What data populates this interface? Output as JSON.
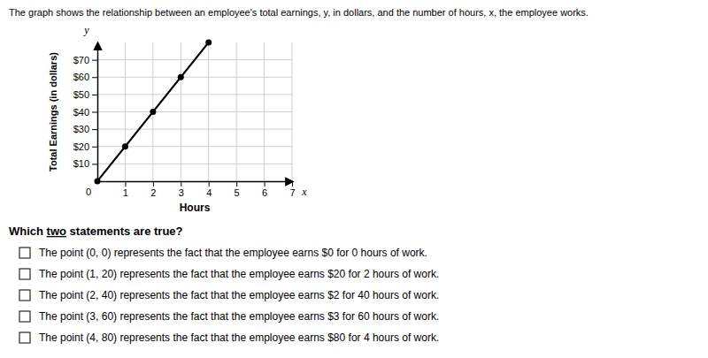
{
  "chart_data": {
    "type": "line",
    "title": "The graph shows the relationship between an employee's total earnings, y, in dollars, and the number of hours, x, the employee works.",
    "xlabel": "Hours",
    "ylabel": "Total Earnings (in dollars)",
    "x": [
      0,
      1,
      2,
      3,
      4
    ],
    "series": [
      {
        "values": [
          0,
          20,
          40,
          60,
          80
        ],
        "color": "#000000",
        "marker": "circle"
      }
    ],
    "xlim": [
      0,
      7
    ],
    "ylim": [
      0,
      80
    ],
    "xticks": [
      1,
      2,
      3,
      4,
      5,
      6,
      7
    ],
    "yticks": [
      {
        "value": 10,
        "label": "$10"
      },
      {
        "value": 20,
        "label": "$20"
      },
      {
        "value": 30,
        "label": "$30"
      },
      {
        "value": 40,
        "label": "$40"
      },
      {
        "value": 50,
        "label": "$50"
      },
      {
        "value": 60,
        "label": "$60"
      },
      {
        "value": 70,
        "label": "$70"
      }
    ],
    "grid": true,
    "annotations": [
      "x",
      "y",
      "0"
    ],
    "question": {
      "before": "Which ",
      "emphasis": "two",
      "after": " statements are true?"
    },
    "options": [
      "The point (0, 0) represents the fact that the employee earns $0 for 0 hours of work.",
      "The point (1, 20) represents the fact that the employee earns $20 for 2 hours of work.",
      "The point (2, 40) represents the fact that the employee earns $2 for 40 hours of work.",
      "The point (3, 60) represents the fact that the employee earns $3 for 60 hours of work.",
      "The point (4, 80) represents the fact that the employee earns $80 for 4 hours of work."
    ]
  }
}
